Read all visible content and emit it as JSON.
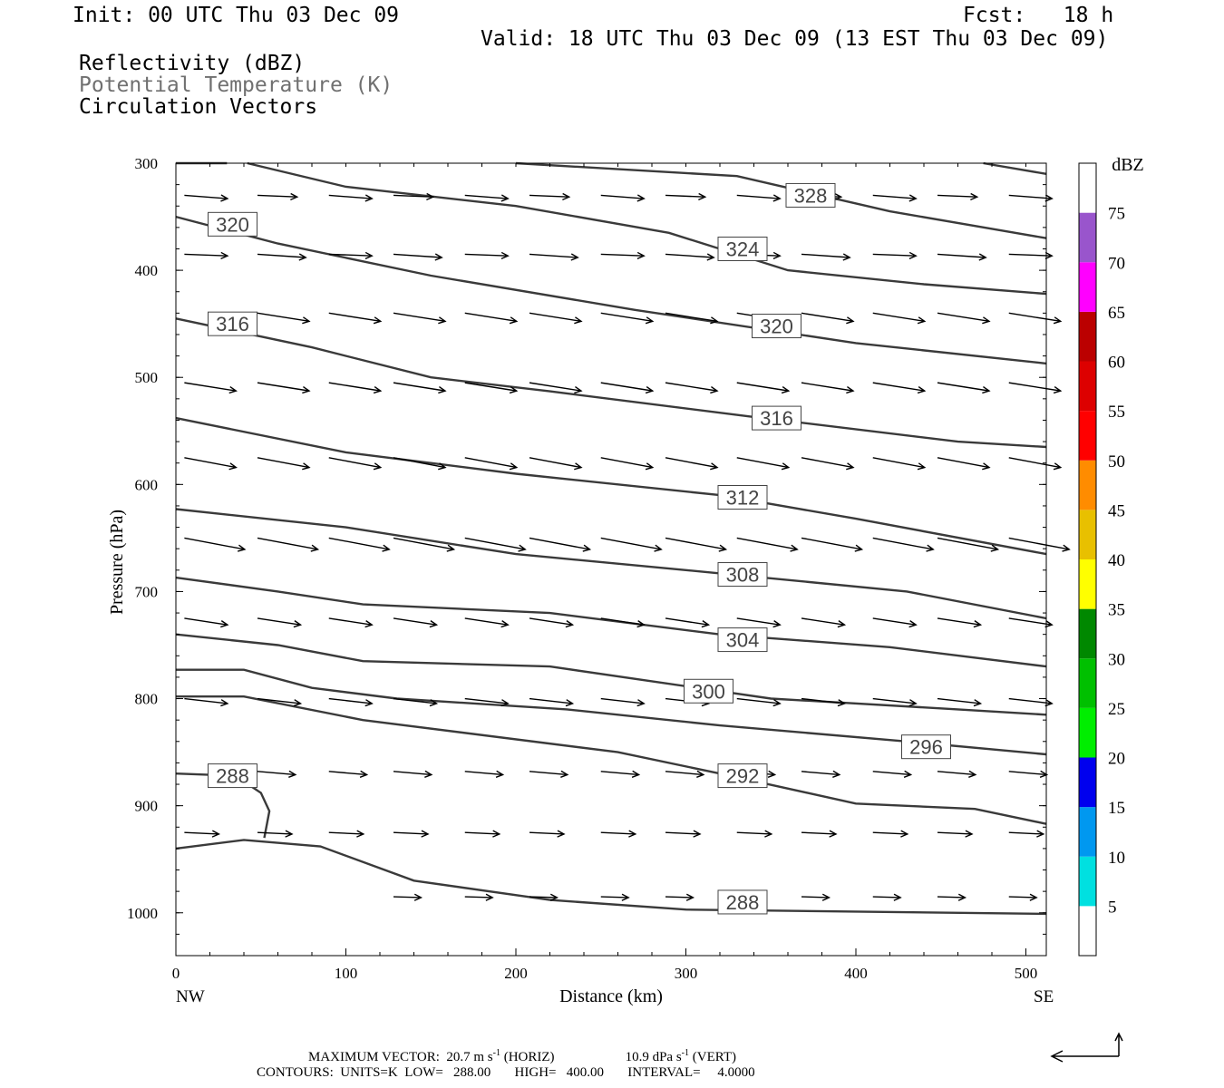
{
  "header": {
    "init": "Init: 00 UTC Thu 03 Dec 09",
    "fcst": "Fcst:   18 h",
    "valid": "Valid: 18 UTC Thu 03 Dec 09 (13 EST Thu 03 Dec 09)",
    "fields": [
      "Reflectivity (dBZ)",
      "Potential Temperature (K)",
      "Circulation Vectors"
    ]
  },
  "footer": {
    "max_vector": "MAXIMUM VECTOR:  20.7 m s",
    "max_vector_exp": "-1",
    "horiz": " (HORIZ)",
    "vert_val": "10.9 dPa s",
    "vert_exp": "-1",
    "vert": " (VERT)",
    "contours": "CONTOURS:  UNITS=K  LOW=   288.00       HIGH=   400.00       INTERVAL=     4.0000"
  },
  "chart_data": {
    "type": "cross-section",
    "xlabel": "Distance (km)",
    "ylabel": "Pressure (hPa)",
    "xlim": [
      0,
      512
    ],
    "ylim": [
      1040,
      300
    ],
    "x_ticks": [
      0,
      100,
      200,
      300,
      400,
      500
    ],
    "y_ticks": [
      300,
      400,
      500,
      600,
      700,
      800,
      900,
      1000
    ],
    "x_end_labels": [
      "NW",
      "SE"
    ],
    "colorbar": {
      "title": "dBZ",
      "labels": [
        5,
        10,
        15,
        20,
        25,
        30,
        35,
        40,
        45,
        50,
        55,
        60,
        65,
        70,
        75
      ],
      "colors": [
        "#ffffff",
        "#00e0e0",
        "#0098f0",
        "#0000ee",
        "#00ee00",
        "#00c000",
        "#008800",
        "#ffff00",
        "#e8c000",
        "#ff8c00",
        "#ff0000",
        "#dd0000",
        "#bb0000",
        "#ff00ff",
        "#9955cc",
        "#ffffff"
      ]
    },
    "contours": [
      {
        "value": 328,
        "label": "328",
        "label_at": [
          360,
          330
        ],
        "points": [
          [
            200,
            300
          ],
          [
            330,
            312
          ],
          [
            420,
            345
          ],
          [
            512,
            370
          ]
        ]
      },
      {
        "value": 328,
        "label": "",
        "points": [
          [
            42,
            300
          ],
          [
            100,
            322
          ],
          [
            200,
            340
          ],
          [
            290,
            365
          ],
          [
            360,
            400
          ],
          [
            440,
            413
          ],
          [
            512,
            422
          ]
        ]
      },
      {
        "value": 328,
        "label": "",
        "points": [
          [
            475,
            300
          ],
          [
            512,
            310
          ]
        ]
      },
      {
        "value": 324,
        "label": "324",
        "label_at": [
          320,
          380
        ],
        "points": [
          [
            0,
            300
          ],
          [
            30,
            300
          ]
        ]
      },
      {
        "value": 320,
        "label": "320",
        "label_at": [
          20,
          357
        ],
        "points": [
          [
            0,
            350
          ],
          [
            60,
            375
          ],
          [
            150,
            405
          ],
          [
            270,
            437
          ],
          [
            400,
            468
          ],
          [
            512,
            487
          ]
        ]
      },
      {
        "value": 320,
        "label": "320",
        "label_at": [
          340,
          452
        ],
        "points": []
      },
      {
        "value": 316,
        "label": "316",
        "label_at": [
          20,
          450
        ],
        "points": [
          [
            0,
            445
          ],
          [
            80,
            472
          ],
          [
            150,
            500
          ],
          [
            220,
            513
          ],
          [
            340,
            537
          ],
          [
            460,
            560
          ],
          [
            512,
            565
          ]
        ]
      },
      {
        "value": 316,
        "label": "316",
        "label_at": [
          340,
          538
        ],
        "points": []
      },
      {
        "value": 312,
        "label": "312",
        "label_at": [
          320,
          612
        ],
        "points": [
          [
            0,
            538
          ],
          [
            100,
            570
          ],
          [
            200,
            590
          ],
          [
            320,
            610
          ],
          [
            400,
            632
          ],
          [
            512,
            665
          ]
        ]
      },
      {
        "value": 308,
        "label": "308",
        "label_at": [
          320,
          684
        ],
        "points": [
          [
            0,
            623
          ],
          [
            100,
            640
          ],
          [
            200,
            665
          ],
          [
            300,
            680
          ],
          [
            430,
            700
          ],
          [
            512,
            725
          ]
        ]
      },
      {
        "value": 304,
        "label": "304",
        "label_at": [
          320,
          745
        ],
        "points": [
          [
            0,
            687
          ],
          [
            60,
            700
          ],
          [
            110,
            712
          ],
          [
            220,
            720
          ],
          [
            320,
            740
          ],
          [
            420,
            752
          ],
          [
            512,
            770
          ]
        ]
      },
      {
        "value": 300,
        "label": "300",
        "label_at": [
          300,
          793
        ],
        "points": [
          [
            0,
            740
          ],
          [
            60,
            750
          ],
          [
            110,
            765
          ],
          [
            220,
            770
          ],
          [
            350,
            800
          ],
          [
            460,
            810
          ],
          [
            512,
            815
          ]
        ]
      },
      {
        "value": 296,
        "label": "296",
        "label_at": [
          428,
          845
        ],
        "points": [
          [
            0,
            773
          ],
          [
            40,
            773
          ],
          [
            80,
            790
          ],
          [
            130,
            800
          ],
          [
            230,
            810
          ],
          [
            320,
            825
          ],
          [
            430,
            840
          ],
          [
            512,
            852
          ]
        ]
      },
      {
        "value": 292,
        "label": "292",
        "label_at": [
          320,
          872
        ],
        "points": [
          [
            0,
            798
          ],
          [
            40,
            798
          ],
          [
            110,
            820
          ],
          [
            260,
            850
          ],
          [
            320,
            870
          ],
          [
            400,
            898
          ],
          [
            470,
            903
          ],
          [
            512,
            917
          ]
        ]
      },
      {
        "value": 288,
        "label": "288",
        "label_at": [
          20,
          872
        ],
        "points": [
          [
            0,
            870
          ],
          [
            35,
            872
          ],
          [
            50,
            888
          ],
          [
            55,
            905
          ],
          [
            52,
            930
          ]
        ]
      },
      {
        "value": 288,
        "label": "288",
        "label_at": [
          320,
          990
        ],
        "points": [
          [
            0,
            940
          ],
          [
            40,
            932
          ],
          [
            85,
            938
          ],
          [
            140,
            970
          ],
          [
            220,
            988
          ],
          [
            300,
            997
          ],
          [
            512,
            1001
          ]
        ]
      }
    ],
    "vector_rows": [
      {
        "p": 330,
        "dx": 25,
        "dy": 4,
        "xs": [
          5,
          90,
          170,
          250,
          330,
          410,
          490
        ]
      },
      {
        "p": 330,
        "dx": 23,
        "dy": 2,
        "xs": [
          48,
          128,
          208,
          288,
          368,
          448
        ]
      },
      {
        "p": 385,
        "dx": 25,
        "dy": 2,
        "xs": [
          5,
          90,
          170,
          250,
          330,
          410,
          490
        ]
      },
      {
        "p": 385,
        "dx": 28,
        "dy": 4,
        "xs": [
          48,
          128,
          208,
          288,
          368,
          448
        ]
      },
      {
        "p": 440,
        "dx": 30,
        "dy": 10,
        "xs": [
          48,
          90,
          128,
          170,
          208,
          250,
          288,
          330,
          368,
          410,
          448,
          490
        ]
      },
      {
        "p": 505,
        "dx": 30,
        "dy": 10,
        "xs": [
          5,
          48,
          90,
          128,
          170,
          208,
          250,
          288,
          330,
          368,
          410,
          448,
          490
        ]
      },
      {
        "p": 575,
        "dx": 30,
        "dy": 12,
        "xs": [
          5,
          48,
          90,
          128,
          170,
          208,
          250,
          288,
          330,
          368,
          410,
          448,
          490
        ]
      },
      {
        "p": 650,
        "dx": 35,
        "dy": 14,
        "xs": [
          5,
          48,
          90,
          128,
          170,
          208,
          250,
          288,
          330,
          368,
          410,
          448,
          490
        ]
      },
      {
        "p": 725,
        "dx": 25,
        "dy": 8,
        "xs": [
          5,
          48,
          90,
          128,
          170,
          208,
          250,
          288,
          330,
          368,
          410,
          448,
          490
        ]
      },
      {
        "p": 800,
        "dx": 25,
        "dy": 6,
        "xs": [
          5,
          48,
          90,
          128,
          170,
          208,
          250,
          288,
          330,
          368,
          410,
          448,
          490
        ]
      },
      {
        "p": 868,
        "dx": 22,
        "dy": 4,
        "xs": [
          48,
          90,
          128,
          170,
          208,
          250,
          288,
          330,
          368,
          410,
          448,
          490
        ]
      },
      {
        "p": 925,
        "dx": 20,
        "dy": 2,
        "xs": [
          5,
          48,
          90,
          128,
          170,
          208,
          250,
          288,
          330,
          368,
          410,
          448,
          490
        ]
      },
      {
        "p": 985,
        "dx": 16,
        "dy": 1,
        "xs": [
          128,
          170,
          208,
          250,
          288,
          330,
          368,
          410,
          448,
          490
        ]
      }
    ],
    "reference_vector": {
      "horiz_ms": 20.7,
      "vert_dPa_s": 10.9
    }
  }
}
